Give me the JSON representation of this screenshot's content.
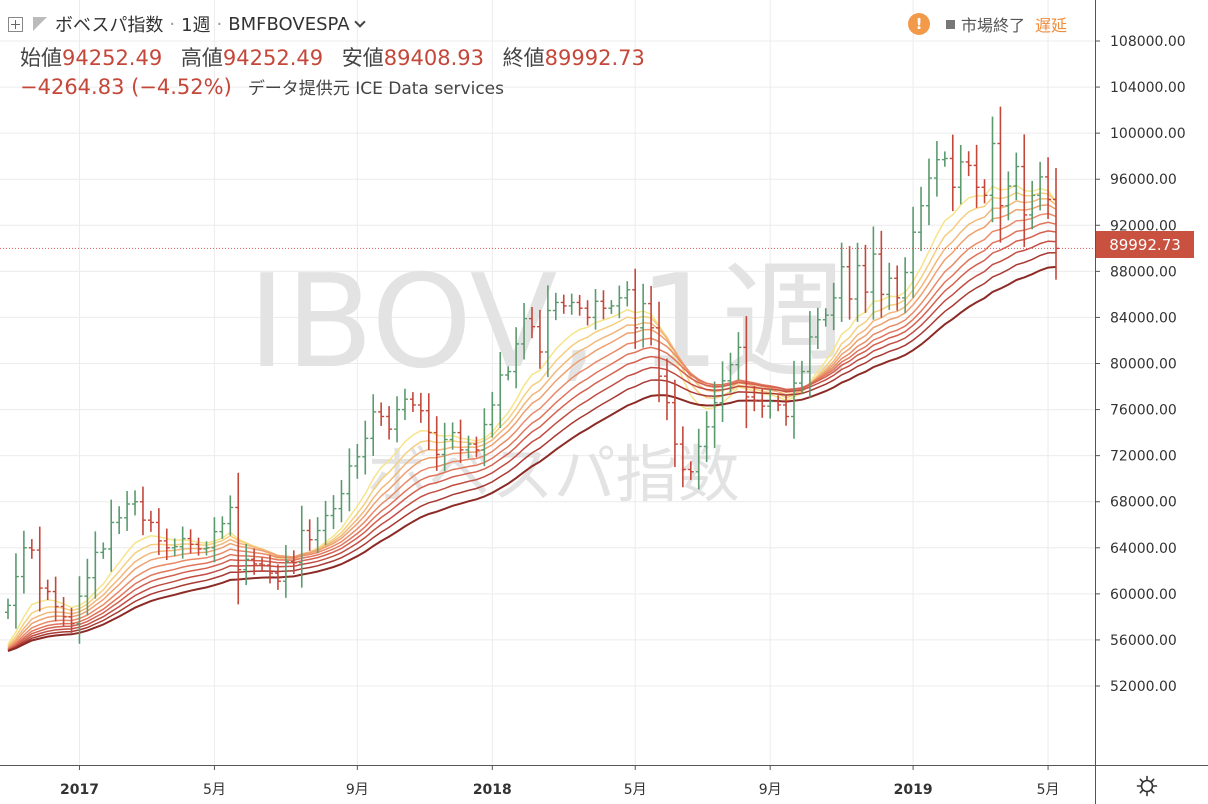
{
  "header": {
    "symbol_name": "ボベスパ指数",
    "interval": "1週",
    "ticker": "BMFBOVESPA",
    "ohlc": [
      {
        "label": "始値",
        "value": "94252.49"
      },
      {
        "label": "高値",
        "value": "94252.49"
      },
      {
        "label": "安値",
        "value": "89408.93"
      },
      {
        "label": "終値",
        "value": "89992.73"
      }
    ],
    "change": "−4264.83 (−4.52%)",
    "data_source": "データ提供元 ICE Data services",
    "market_status": "市場終了",
    "delay": "遅延",
    "warning_glyph": "!"
  },
  "watermark": {
    "line1": "IBOV, 1週",
    "line2": "ボベスパ指数"
  },
  "colors": {
    "up": "#5a9a6e",
    "down": "#c4473a",
    "grid": "#ececec",
    "price_line": "#d9534f",
    "price_tag": "#c95140",
    "text": "#333333"
  },
  "icons": {
    "expand": "expand-icon",
    "flag": "flag-icon",
    "warning": "warning-icon",
    "settings": "gear-icon",
    "dropdown": "chevron-down-icon"
  },
  "chart_data": {
    "type": "bar",
    "ohlc_style": "ohlc-bars",
    "x_axis": {
      "tick_labels": [
        "2017",
        "5月",
        "9月",
        "2018",
        "5月",
        "9月",
        "2019",
        "5月"
      ]
    },
    "y_axis": {
      "position": "right",
      "ylim": [
        49000,
        110500
      ],
      "tick_labels": [
        "52000.00",
        "56000.00",
        "60000.00",
        "64000.00",
        "68000.00",
        "72000.00",
        "76000.00",
        "80000.00",
        "84000.00",
        "88000.00",
        "92000.00",
        "96000.00",
        "100000.00",
        "104000.00",
        "108000.00"
      ]
    },
    "last_price": "89992.73",
    "grid": true,
    "close_series": [
      [
        "2016-10-28",
        59000
      ],
      [
        "2016-11-04",
        61500
      ],
      [
        "2016-11-11",
        64000
      ],
      [
        "2016-11-18",
        63800
      ],
      [
        "2016-11-25",
        60500
      ],
      [
        "2016-12-02",
        60200
      ],
      [
        "2016-12-09",
        58900
      ],
      [
        "2016-12-16",
        58000
      ],
      [
        "2016-12-23",
        57400
      ],
      [
        "2016-12-30",
        59800
      ],
      [
        "2017-01-06",
        61400
      ],
      [
        "2017-01-13",
        63600
      ],
      [
        "2017-01-20",
        63900
      ],
      [
        "2017-01-27",
        66200
      ],
      [
        "2017-02-03",
        66600
      ],
      [
        "2017-02-10",
        67800
      ],
      [
        "2017-02-17",
        68000
      ],
      [
        "2017-02-24",
        66400
      ],
      [
        "2017-03-03",
        66200
      ],
      [
        "2017-03-10",
        64600
      ],
      [
        "2017-03-17",
        64000
      ],
      [
        "2017-03-24",
        64100
      ],
      [
        "2017-03-31",
        64800
      ],
      [
        "2017-04-07",
        64300
      ],
      [
        "2017-04-14",
        63900
      ],
      [
        "2017-04-21",
        64000
      ],
      [
        "2017-04-28",
        65400
      ],
      [
        "2017-05-05",
        66100
      ],
      [
        "2017-05-12",
        67500
      ],
      [
        "2017-05-19",
        62100
      ],
      [
        "2017-05-26",
        63000
      ],
      [
        "2017-06-02",
        62600
      ],
      [
        "2017-06-09",
        62500
      ],
      [
        "2017-06-16",
        61800
      ],
      [
        "2017-06-23",
        61100
      ],
      [
        "2017-06-30",
        62800
      ],
      [
        "2017-07-07",
        62700
      ],
      [
        "2017-07-14",
        65500
      ],
      [
        "2017-07-21",
        64700
      ],
      [
        "2017-07-28",
        65500
      ],
      [
        "2017-08-04",
        66800
      ],
      [
        "2017-08-11",
        67400
      ],
      [
        "2017-08-18",
        68700
      ],
      [
        "2017-08-25",
        71100
      ],
      [
        "2017-09-01",
        71900
      ],
      [
        "2017-09-08",
        73500
      ],
      [
        "2017-09-15",
        75800
      ],
      [
        "2017-09-22",
        75400
      ],
      [
        "2017-09-29",
        74300
      ],
      [
        "2017-10-06",
        76000
      ],
      [
        "2017-10-13",
        76900
      ],
      [
        "2017-10-20",
        76400
      ],
      [
        "2017-10-27",
        75900
      ],
      [
        "2017-11-03",
        74000
      ],
      [
        "2017-11-10",
        72100
      ],
      [
        "2017-11-17",
        73400
      ],
      [
        "2017-11-24",
        74000
      ],
      [
        "2017-12-01",
        72500
      ],
      [
        "2017-12-08",
        73000
      ],
      [
        "2017-12-15",
        72500
      ],
      [
        "2017-12-22",
        74700
      ],
      [
        "2017-12-29",
        76400
      ],
      [
        "2018-01-05",
        79000
      ],
      [
        "2018-01-12",
        79300
      ],
      [
        "2018-01-19",
        81700
      ],
      [
        "2018-01-26",
        83900
      ],
      [
        "2018-02-02",
        83200
      ],
      [
        "2018-02-09",
        81000
      ],
      [
        "2018-02-16",
        84600
      ],
      [
        "2018-02-23",
        85300
      ],
      [
        "2018-03-02",
        85000
      ],
      [
        "2018-03-09",
        85300
      ],
      [
        "2018-03-16",
        84800
      ],
      [
        "2018-03-23",
        84000
      ],
      [
        "2018-03-30",
        85400
      ],
      [
        "2018-04-06",
        84800
      ],
      [
        "2018-04-13",
        85000
      ],
      [
        "2018-04-20",
        85700
      ],
      [
        "2018-04-27",
        86400
      ],
      [
        "2018-05-04",
        83100
      ],
      [
        "2018-05-11",
        85200
      ],
      [
        "2018-05-18",
        83100
      ],
      [
        "2018-05-25",
        78900
      ],
      [
        "2018-06-01",
        76600
      ],
      [
        "2018-06-08",
        73000
      ],
      [
        "2018-06-15",
        70800
      ],
      [
        "2018-06-22",
        70600
      ],
      [
        "2018-06-29",
        72800
      ],
      [
        "2018-07-06",
        74500
      ],
      [
        "2018-07-13",
        76600
      ],
      [
        "2018-07-20",
        78500
      ],
      [
        "2018-07-27",
        79900
      ],
      [
        "2018-08-03",
        81400
      ],
      [
        "2018-08-10",
        77100
      ],
      [
        "2018-08-17",
        76800
      ],
      [
        "2018-08-24",
        76300
      ],
      [
        "2018-08-31",
        76700
      ],
      [
        "2018-09-07",
        76400
      ],
      [
        "2018-09-14",
        75400
      ],
      [
        "2018-09-21",
        78300
      ],
      [
        "2018-09-28",
        79300
      ],
      [
        "2018-10-05",
        82300
      ],
      [
        "2018-10-12",
        83800
      ],
      [
        "2018-10-19",
        84200
      ],
      [
        "2018-10-26",
        85700
      ],
      [
        "2018-11-02",
        88400
      ],
      [
        "2018-11-09",
        85600
      ],
      [
        "2018-11-16",
        88500
      ],
      [
        "2018-11-23",
        86200
      ],
      [
        "2018-11-30",
        89500
      ],
      [
        "2018-12-07",
        86000
      ],
      [
        "2018-12-14",
        87400
      ],
      [
        "2018-12-21",
        85700
      ],
      [
        "2018-12-28",
        87900
      ],
      [
        "2019-01-04",
        91400
      ],
      [
        "2019-01-11",
        93700
      ],
      [
        "2019-01-18",
        96100
      ],
      [
        "2019-01-25",
        97700
      ],
      [
        "2019-02-01",
        97800
      ],
      [
        "2019-02-08",
        95300
      ],
      [
        "2019-02-15",
        97500
      ],
      [
        "2019-02-22",
        97200
      ],
      [
        "2019-03-01",
        95300
      ],
      [
        "2019-03-08",
        94600
      ],
      [
        "2019-03-15",
        99100
      ],
      [
        "2019-03-22",
        93700
      ],
      [
        "2019-03-29",
        95400
      ],
      [
        "2019-04-05",
        97100
      ],
      [
        "2019-04-12",
        92900
      ],
      [
        "2019-04-19",
        94600
      ],
      [
        "2019-04-26",
        96200
      ],
      [
        "2019-05-03",
        94250
      ],
      [
        "2019-05-10",
        89993
      ]
    ]
  }
}
